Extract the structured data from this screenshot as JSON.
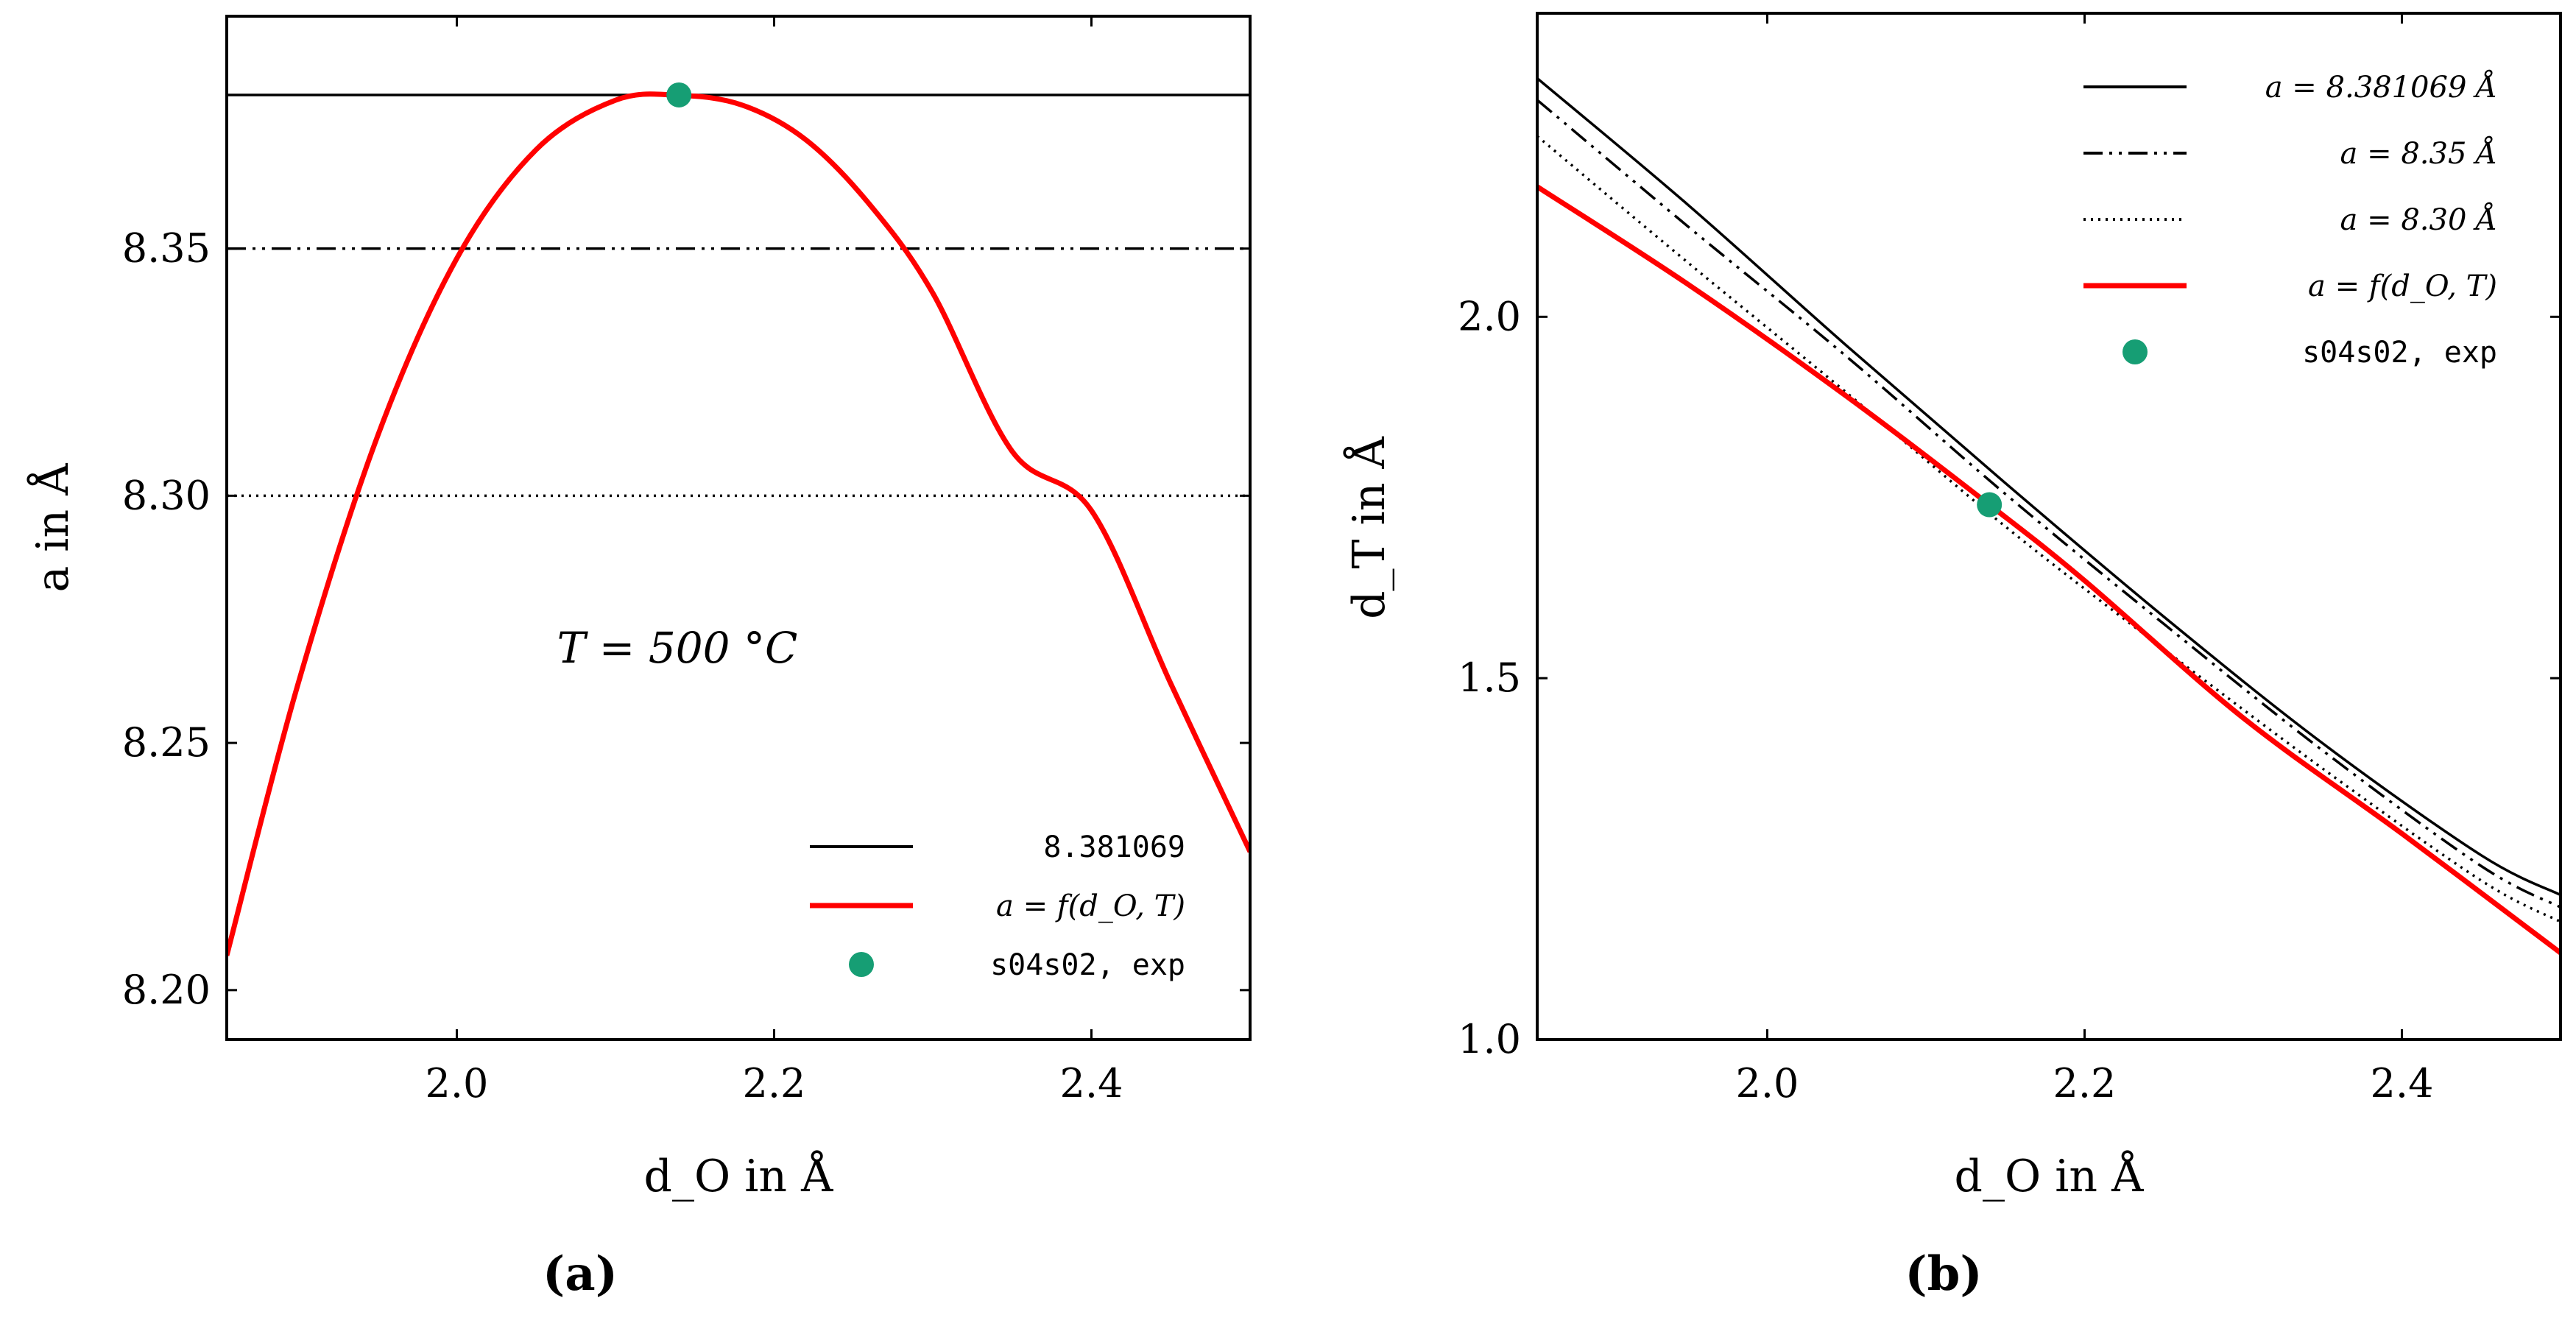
{
  "chart_data": [
    {
      "panel": "(a)",
      "type": "line",
      "xlabel": "d_O in Å",
      "ylabel": "a in Å",
      "xlim": [
        1.855,
        2.5
      ],
      "ylim": [
        8.19,
        8.397
      ],
      "xticks": [
        "2.0",
        "2.2",
        "2.4"
      ],
      "yticks": [
        "8.20",
        "8.25",
        "8.30",
        "8.35"
      ],
      "annotation": "T = 500 °C",
      "series": [
        {
          "name": "8.381069",
          "style": "solid",
          "color": "#000000",
          "type": "hline",
          "value": 8.381069
        },
        {
          "name": "a = 8.35",
          "style": "dashdotdot",
          "color": "#000000",
          "type": "hline",
          "value": 8.35,
          "in_legend": false
        },
        {
          "name": "a = 8.30",
          "style": "dotted",
          "color": "#000000",
          "type": "hline",
          "value": 8.3,
          "in_legend": false
        },
        {
          "name": "a = f(d_O, T)",
          "style": "solid",
          "color": "#ff0000",
          "x": [
            1.855,
            1.9,
            1.95,
            2.0,
            2.05,
            2.1,
            2.14,
            2.18,
            2.22,
            2.26,
            2.3,
            2.35,
            2.4,
            2.45,
            2.5
          ],
          "y": [
            8.207,
            8.262,
            8.312,
            8.348,
            8.37,
            8.38,
            8.381,
            8.379,
            8.372,
            8.359,
            8.341,
            8.309,
            8.297,
            8.262,
            8.228
          ]
        },
        {
          "name": "s04s02, exp",
          "type": "scatter",
          "color": "#169e74",
          "x": [
            2.14
          ],
          "y": [
            8.381069
          ]
        }
      ],
      "legend": [
        {
          "label": "8.381069",
          "style": "solid",
          "color": "#000000"
        },
        {
          "label": "a = f(d_O, T)",
          "style": "solid",
          "color": "#ff0000"
        },
        {
          "label": "s04s02, exp",
          "style": "marker",
          "color": "#169e74"
        }
      ]
    },
    {
      "panel": "(b)",
      "type": "line",
      "xlabel": "d_O in Å",
      "ylabel": "d_T in Å",
      "xlim": [
        1.855,
        2.5
      ],
      "ylim": [
        1.0,
        2.42
      ],
      "xticks": [
        "2.0",
        "2.2",
        "2.4"
      ],
      "yticks": [
        "1.0",
        "1.5",
        "2.0"
      ],
      "series": [
        {
          "name": "a = 8.381069 Å",
          "style": "solid",
          "color": "#000000",
          "x": [
            1.855,
            1.95,
            2.05,
            2.15,
            2.25,
            2.35,
            2.45,
            2.5
          ],
          "y": [
            2.33,
            2.155,
            1.96,
            1.77,
            1.585,
            1.41,
            1.255,
            1.2
          ]
        },
        {
          "name": "a = 8.35 Å",
          "style": "dashdotdot",
          "color": "#000000",
          "x": [
            1.855,
            1.95,
            2.05,
            2.15,
            2.25,
            2.35,
            2.45,
            2.5
          ],
          "y": [
            2.3,
            2.125,
            1.945,
            1.755,
            1.575,
            1.4,
            1.24,
            1.183
          ]
        },
        {
          "name": "a = 8.30 Å",
          "style": "dotted",
          "color": "#000000",
          "x": [
            1.855,
            1.95,
            2.05,
            2.15,
            2.25,
            2.35,
            2.45,
            2.5
          ],
          "y": [
            2.25,
            2.075,
            1.895,
            1.71,
            1.54,
            1.375,
            1.22,
            1.163
          ]
        },
        {
          "name": "a = f(d_O, T)",
          "style": "solid",
          "color": "#ff0000",
          "x": [
            1.855,
            1.95,
            2.05,
            2.14,
            2.2,
            2.3,
            2.4,
            2.5
          ],
          "y": [
            2.18,
            2.045,
            1.89,
            1.74,
            1.635,
            1.445,
            1.285,
            1.12
          ]
        },
        {
          "name": "s04s02, exp",
          "type": "scatter",
          "color": "#169e74",
          "x": [
            2.14
          ],
          "y": [
            1.74
          ]
        }
      ],
      "legend": [
        {
          "label": "a = 8.381069 Å",
          "style": "solid",
          "color": "#000000"
        },
        {
          "label": "a = 8.35 Å",
          "style": "dashdotdot",
          "color": "#000000"
        },
        {
          "label": "a = 8.30 Å",
          "style": "dotted",
          "color": "#000000"
        },
        {
          "label": "a = f(d_O, T)",
          "style": "solid",
          "color": "#ff0000"
        },
        {
          "label": "s04s02, exp",
          "style": "marker",
          "color": "#169e74"
        }
      ]
    }
  ]
}
